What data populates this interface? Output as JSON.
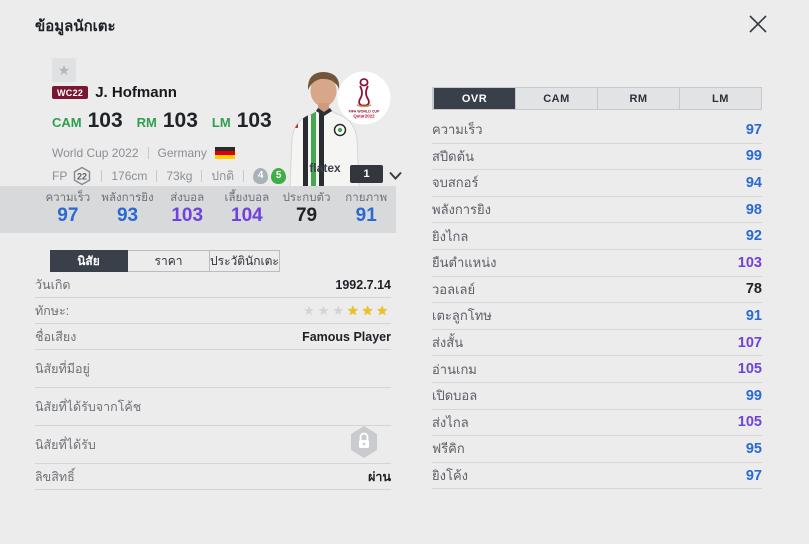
{
  "header": {
    "title": "ข้อมูลนักเตะ"
  },
  "icons": {
    "close": "close-x",
    "favorite": "★",
    "chevron": "chevron-down",
    "lock": "padlock-hexagon",
    "flag": "germany-flag",
    "emblem": "world-cup-2022-emblem"
  },
  "player": {
    "badge": "WC22",
    "name": "J. Hofmann",
    "positions": [
      {
        "label": "CAM",
        "value": "103"
      },
      {
        "label": "RM",
        "value": "103"
      },
      {
        "label": "LM",
        "value": "103"
      }
    ],
    "season": "World Cup 2022",
    "nation": "Germany",
    "fp_label": "FP",
    "fp_value": "22",
    "height": "176cm",
    "weight": "73kg",
    "body_type": "ปกติ",
    "weak_foot": "4",
    "skill_moves": "5",
    "jersey_sponsor": "flatex",
    "card_count": "1",
    "emblem_line1": "FIFA WORLD CUP",
    "emblem_line2": "Qatar2022"
  },
  "summary_stats": [
    {
      "label": "ความเร็ว",
      "value": "97"
    },
    {
      "label": "พลังการยิง",
      "value": "93"
    },
    {
      "label": "ส่งบอล",
      "value": "103"
    },
    {
      "label": "เลี้ยงบอล",
      "value": "104"
    },
    {
      "label": "ประกบตัว",
      "value": "79"
    },
    {
      "label": "กายภาพ",
      "value": "91"
    }
  ],
  "left_tabs": [
    {
      "label": "นิสัย",
      "active": true
    },
    {
      "label": "ราคา"
    },
    {
      "label": "ประวัตินักเตะ"
    }
  ],
  "details": [
    {
      "label": "วันเกิด",
      "value": "1992.7.14",
      "type": "text"
    },
    {
      "label": "ทักษะ:",
      "type": "stars",
      "stars_total": 6,
      "stars_filled": 3
    },
    {
      "label": "ชื่อเสียง",
      "value": "Famous Player",
      "type": "text"
    },
    {
      "label": "นิสัยที่มีอยู่",
      "value": "",
      "type": "habit"
    },
    {
      "label": "นิสัยที่ได้รับจากโค้ช",
      "value": "",
      "type": "habit"
    },
    {
      "label": "นิสัยที่ได้รับ",
      "type": "lock"
    },
    {
      "label": "ลิขสิทธิ์",
      "value": "ผ่าน",
      "type": "text"
    }
  ],
  "right_tabs": [
    {
      "label": "OVR",
      "active": true
    },
    {
      "label": "CAM"
    },
    {
      "label": "RM"
    },
    {
      "label": "LM"
    }
  ],
  "attributes": [
    {
      "label": "ความเร็ว",
      "value": "97"
    },
    {
      "label": "สปีดต้น",
      "value": "99"
    },
    {
      "label": "จบสกอร์",
      "value": "94"
    },
    {
      "label": "พลังการยิง",
      "value": "98"
    },
    {
      "label": "ยิงไกล",
      "value": "92"
    },
    {
      "label": "ยืนตำแหน่ง",
      "value": "103"
    },
    {
      "label": "วอลเลย์",
      "value": "78"
    },
    {
      "label": "เตะลูกโทษ",
      "value": "91"
    },
    {
      "label": "ส่งสั้น",
      "value": "107"
    },
    {
      "label": "อ่านเกม",
      "value": "105"
    },
    {
      "label": "เปิดบอล",
      "value": "99"
    },
    {
      "label": "ส่งไกล",
      "value": "105"
    },
    {
      "label": "ฟรีคิก",
      "value": "95"
    },
    {
      "label": "ยิงโค้ง",
      "value": "97"
    }
  ],
  "colors": {
    "value_high": "#6f41de",
    "value_mid": "#2a69d2",
    "value_low": "#1f2227",
    "position_green": "#2f9e4e",
    "badge_wc22": "#7a1834",
    "tab_active": "#394049",
    "skill_star_filled": "#f0c11b",
    "weak_foot_badge": "#a9b1b9",
    "skill_moves_badge": "#3fae47",
    "flag_black": "#2b2b2b",
    "flag_red": "#dd0000",
    "flag_gold": "#ffce00"
  }
}
